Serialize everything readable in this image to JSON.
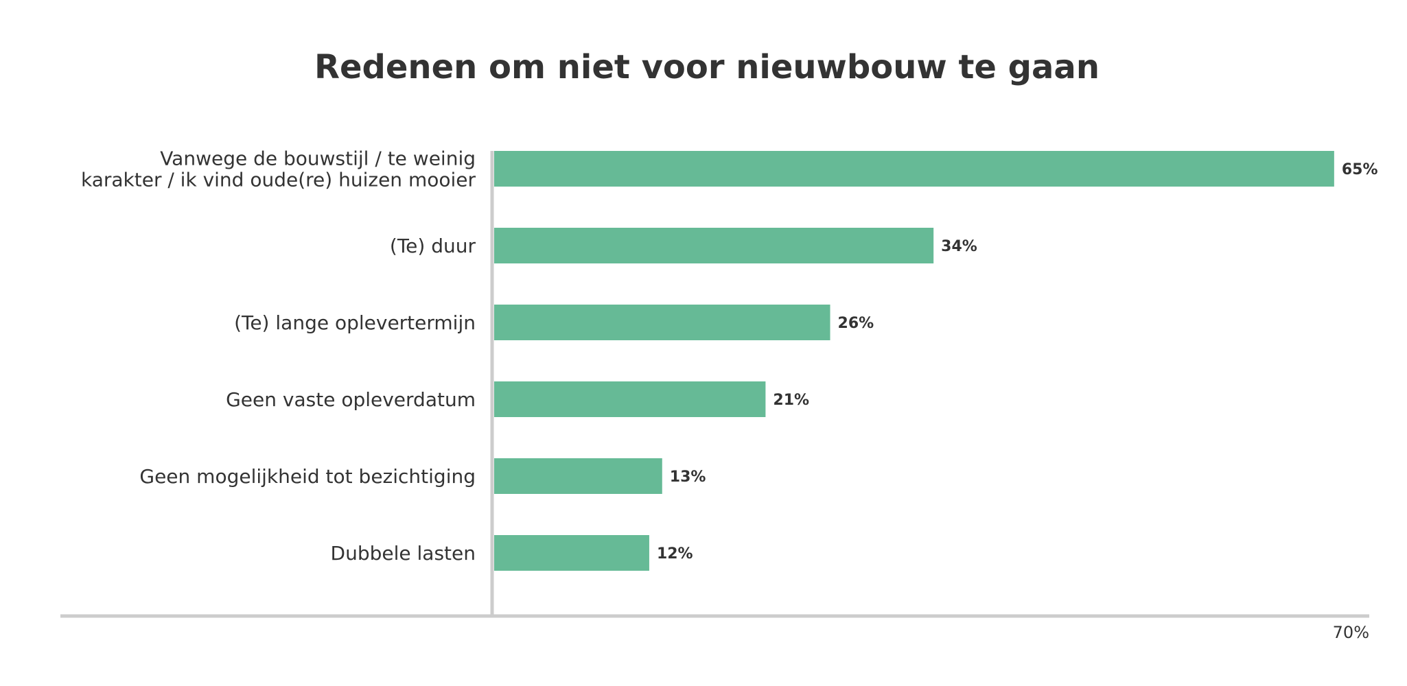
{
  "chart_data": {
    "type": "bar",
    "orientation": "horizontal",
    "title": "Redenen om niet voor nieuwbouw te gaan",
    "categories": [
      "Vanwege de bouwstijl / te weinig karakter / ik vind oude(re) huizen mooier",
      "(Te) duur",
      "(Te) lange oplevertermijn",
      "Geen vaste opleverdatum",
      "Geen mogelijkheid tot bezichtiging",
      "Dubbele lasten"
    ],
    "category_lines": [
      [
        "Vanwege de bouwstijl / te weinig",
        "karakter / ik vind oude(re) huizen mooier"
      ],
      [
        "(Te) duur"
      ],
      [
        "(Te) lange oplevertermijn"
      ],
      [
        "Geen vaste opleverdatum"
      ],
      [
        "Geen mogelijkheid tot bezichtiging"
      ],
      [
        "Dubbele lasten"
      ]
    ],
    "values": [
      65,
      34,
      26,
      21,
      13,
      12
    ],
    "value_labels": [
      "65%",
      "34%",
      "26%",
      "21%",
      "13%",
      "12%"
    ],
    "xlim": [
      0,
      70
    ],
    "x_tick_labels": [
      "70%"
    ],
    "xlabel": "",
    "ylabel": "",
    "grid": false,
    "legend": "none",
    "colors": {
      "bar": "#66ba96",
      "axis": "#cccccc",
      "text": "#333333"
    }
  }
}
